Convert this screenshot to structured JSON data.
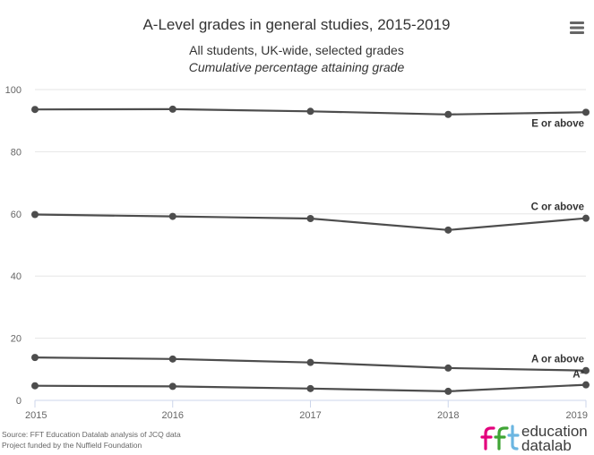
{
  "chart_data": {
    "type": "line",
    "title": "A-Level grades in general studies, 2015-2019",
    "subtitle": "All students, UK-wide, selected grades",
    "subtitle2": "Cumulative percentage attaining grade",
    "x": [
      "2015",
      "2016",
      "2017",
      "2018",
      "2019"
    ],
    "ylim": [
      0,
      100
    ],
    "yticks": [
      "0",
      "20",
      "40",
      "60",
      "80",
      "100"
    ],
    "grid": true,
    "series": [
      {
        "name": "E or above",
        "values": [
          93.6,
          93.7,
          93.0,
          92.0,
          92.7
        ]
      },
      {
        "name": "C or above",
        "values": [
          59.8,
          59.2,
          58.5,
          54.8,
          58.6
        ]
      },
      {
        "name": "A or above",
        "values": [
          13.8,
          13.3,
          12.2,
          10.4,
          9.6
        ]
      },
      {
        "name": "A*",
        "values": [
          4.7,
          4.5,
          3.8,
          2.9,
          5.0
        ]
      }
    ],
    "line_color": "#4d4d4d"
  },
  "footer": {
    "source": "Source: FFT Education Datalab analysis of JCQ data",
    "funding": "Project funded by the Nuffield Foundation"
  },
  "logo": {
    "line1": "education",
    "line2": "datalab",
    "colors": [
      "#e3007d",
      "#3fa535",
      "#6cb6e1"
    ]
  },
  "menu": {
    "icon": "hamburger-menu-icon"
  }
}
